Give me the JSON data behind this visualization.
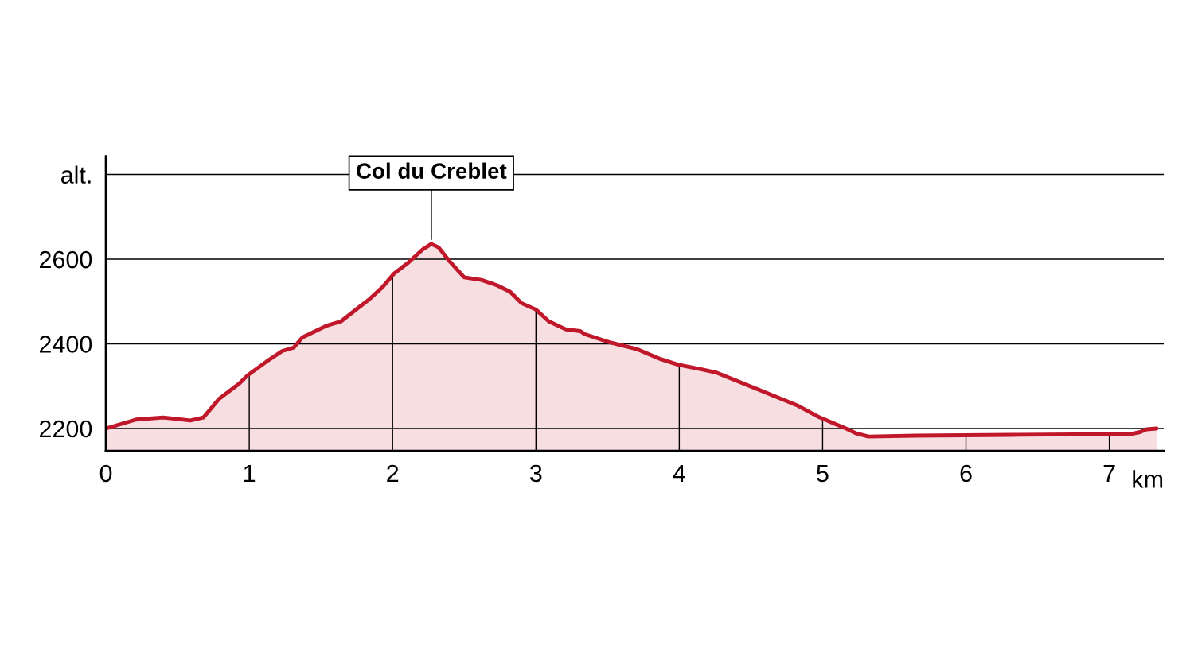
{
  "chart_data": {
    "type": "area",
    "xlabel": "km",
    "x": [
      0,
      0.21,
      0.4,
      0.59,
      0.68,
      0.79,
      0.93,
      0.99,
      1.12,
      1.23,
      1.31,
      1.37,
      1.54,
      1.64,
      1.76,
      1.84,
      1.93,
      2.01,
      2.11,
      2.21,
      2.27,
      2.32,
      2.4,
      2.5,
      2.62,
      2.73,
      2.82,
      2.9,
      3.0,
      3.09,
      3.21,
      3.31,
      3.34,
      3.51,
      3.71,
      3.87,
      3.99,
      4.15,
      4.26,
      4.37,
      4.59,
      4.82,
      4.98,
      5.15,
      5.23,
      5.32,
      5.65,
      6.37,
      7.15,
      7.21,
      7.26,
      7.33
    ],
    "series": [
      {
        "color": "#c0182a",
        "values": [
          2200,
          2221,
          2226,
          2219,
          2226,
          2270,
          2306,
          2326,
          2358,
          2383,
          2391,
          2415,
          2443,
          2453,
          2485,
          2506,
          2534,
          2566,
          2592,
          2623,
          2636,
          2628,
          2594,
          2557,
          2551,
          2538,
          2523,
          2496,
          2481,
          2453,
          2434,
          2430,
          2423,
          2404,
          2387,
          2364,
          2351,
          2340,
          2332,
          2317,
          2287,
          2255,
          2226,
          2202,
          2189,
          2181,
          2183,
          2185,
          2187,
          2191,
          2198,
          2200
        ]
      }
    ],
    "xlim": [
      0,
      7.38
    ],
    "ylim": [
      2147,
      2843
    ],
    "xticks": [
      0,
      1,
      2,
      3,
      4,
      5,
      6,
      7
    ],
    "yticks": [
      2200,
      2400,
      2600,
      {
        "value": 2800,
        "label": "alt."
      }
    ],
    "grid": true,
    "annotations": [
      {
        "text": "Col du Creblet",
        "x": 2.27,
        "y": 2636
      }
    ]
  }
}
